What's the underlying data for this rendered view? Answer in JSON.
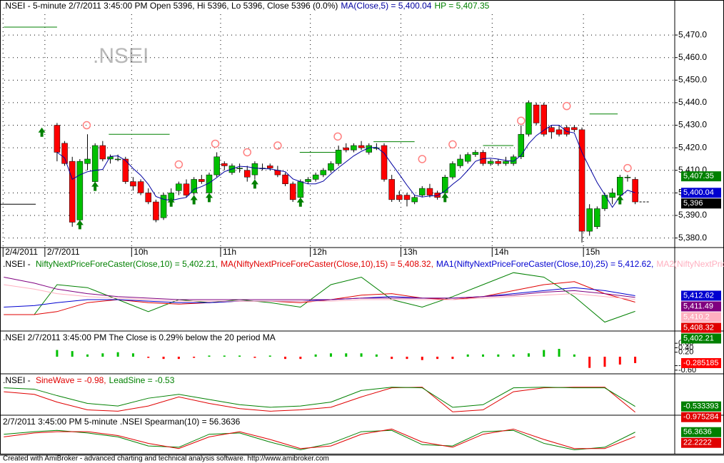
{
  "chart_data": [
    {
      "type": "candlestick",
      "title": ".NSEI - 5-minute 2/7/2011 3:45:00 PM Open 5396, Hi 5396, Lo 5396, Close 5396 (0.0%)",
      "xlim": [
        -7.5,
        81.2
      ],
      "ylim": [
        5376.4,
        5479.2
      ],
      "xticks": [
        {
          "value": -7.1,
          "label": "2/4/2011"
        },
        {
          "value": -1.6,
          "label": "2/7/2011"
        },
        {
          "value": 9.8,
          "label": "10h"
        },
        {
          "value": 21.5,
          "label": "11h"
        },
        {
          "value": 33.3,
          "label": "12h"
        },
        {
          "value": 45.2,
          "label": "13h"
        },
        {
          "value": 57.2,
          "label": "14h"
        },
        {
          "value": 69.2,
          "label": "15h"
        }
      ],
      "yticks": [
        {
          "value": 5380,
          "label": "5,380.0"
        },
        {
          "value": 5390,
          "label": "5,390.0"
        },
        {
          "value": 5400,
          "label": "5,400.0"
        },
        {
          "value": 5410,
          "label": "5,410.0"
        },
        {
          "value": 5420,
          "label": "5,420.0"
        },
        {
          "value": 5430,
          "label": "5,430.0"
        },
        {
          "value": 5440,
          "label": "5,440.0"
        },
        {
          "value": 5450,
          "label": "5,450.0"
        },
        {
          "value": 5460,
          "label": "5,460.0"
        },
        {
          "value": 5470,
          "label": "5,470.0"
        }
      ],
      "grid": true,
      "up_color": "#00c000",
      "down_color": "#ff0000",
      "x": [
        0,
        1,
        2,
        3,
        4,
        5,
        6,
        7,
        8,
        9,
        10,
        11,
        12,
        13,
        14,
        15,
        16,
        17,
        18,
        19,
        20,
        21,
        22,
        23,
        24,
        25,
        26,
        27,
        28,
        29,
        30,
        31,
        32,
        33,
        34,
        35,
        36,
        37,
        38,
        39,
        40,
        41,
        42,
        43,
        44,
        45,
        46,
        47,
        48,
        49,
        50,
        51,
        52,
        53,
        54,
        55,
        56,
        57,
        58,
        59,
        60,
        61,
        62,
        63,
        64,
        65,
        66,
        67,
        68,
        69,
        70,
        71,
        72,
        73,
        74,
        75,
        76
      ],
      "open": [
        5430,
        5422,
        5414,
        5388,
        5413,
        5405,
        5421,
        5415,
        5415,
        5415,
        5405,
        5405,
        5400,
        5396,
        5389,
        5397,
        5401,
        5404,
        5400,
        5406,
        5400,
        5408,
        5413,
        5409,
        5411,
        5410,
        5408,
        5411,
        5412,
        5410,
        5408,
        5404,
        5398,
        5405,
        5406,
        5408,
        5410,
        5413,
        5420,
        5419,
        5421,
        5418,
        5420,
        5421,
        5406,
        5399,
        5399,
        5396,
        5399,
        5402,
        5400,
        5400,
        5407,
        5412,
        5414,
        5417,
        5418,
        5413,
        5414,
        5413,
        5413,
        5416,
        5426,
        5439,
        5439,
        5429,
        5428,
        5429,
        5429,
        5428,
        5383,
        5385,
        5393,
        5398,
        5399,
        5407,
        5406
      ],
      "high": [
        5431,
        5423,
        5416,
        5415,
        5426,
        5422,
        5423,
        5417,
        5417,
        5416,
        5407,
        5406,
        5402,
        5397,
        5400,
        5402,
        5405,
        5406,
        5407,
        5408,
        5409,
        5418,
        5414,
        5413,
        5413,
        5412,
        5414,
        5413,
        5413,
        5412,
        5409,
        5405,
        5406,
        5407,
        5409,
        5411,
        5414,
        5421,
        5422,
        5422,
        5423,
        5422,
        5422,
        5422,
        5408,
        5401,
        5400,
        5399,
        5403,
        5404,
        5401,
        5408,
        5414,
        5417,
        5418,
        5419,
        5419,
        5415,
        5415,
        5416,
        5417,
        5430,
        5441,
        5440,
        5440,
        5430,
        5430,
        5430,
        5430,
        5429,
        5395,
        5394,
        5400,
        5402,
        5408,
        5408,
        5407
      ],
      "low": [
        5414,
        5412,
        5385,
        5386,
        5410,
        5403,
        5414,
        5413,
        5414,
        5404,
        5401,
        5399,
        5395,
        5387,
        5388,
        5396,
        5399,
        5398,
        5399,
        5404,
        5399,
        5407,
        5410,
        5408,
        5409,
        5405,
        5406,
        5410,
        5410,
        5407,
        5403,
        5396,
        5397,
        5404,
        5405,
        5407,
        5409,
        5412,
        5418,
        5418,
        5419,
        5417,
        5419,
        5405,
        5396,
        5396,
        5394,
        5395,
        5398,
        5398,
        5397,
        5399,
        5406,
        5411,
        5413,
        5416,
        5412,
        5412,
        5412,
        5412,
        5412,
        5415,
        5425,
        5430,
        5425,
        5424,
        5425,
        5425,
        5427,
        5378,
        5381,
        5384,
        5392,
        5395,
        5398,
        5405,
        5395
      ],
      "close": [
        5418,
        5413,
        5387,
        5414,
        5415,
        5421,
        5415,
        5416,
        5415,
        5405,
        5403,
        5400,
        5396,
        5388,
        5399,
        5400,
        5404,
        5399,
        5406,
        5405,
        5408,
        5416,
        5412,
        5412,
        5411,
        5407,
        5413,
        5411,
        5411,
        5408,
        5404,
        5397,
        5405,
        5406,
        5408,
        5410,
        5413,
        5419,
        5419,
        5421,
        5420,
        5421,
        5420,
        5406,
        5397,
        5397,
        5397,
        5398,
        5402,
        5399,
        5398,
        5407,
        5413,
        5415,
        5417,
        5418,
        5413,
        5414,
        5413,
        5414,
        5416,
        5426,
        5440,
        5431,
        5426,
        5427,
        5426,
        5426,
        5428,
        5383,
        5393,
        5393,
        5399,
        5400,
        5407,
        5407,
        5396
      ],
      "series": [
        {
          "legend": "MA(Close,5) = 5,400.04",
          "color": "#0000a0",
          "value_label": "5,400.04",
          "values": [
            5418,
            5415.5,
            5406,
            5408,
            5409.4,
            5410,
            5410.4,
            5416.2,
            5416.4,
            5414.4,
            5410.8,
            5407.8,
            5403.8,
            5398.4,
            5397.2,
            5396.6,
            5397.4,
            5398,
            5401.6,
            5402.8,
            5404.4,
            5406.8,
            5409.4,
            5410.6,
            5411.8,
            5411.6,
            5411,
            5410.8,
            5410.6,
            5410,
            5409.4,
            5406.2,
            5405,
            5404,
            5404,
            5405.2,
            5408.4,
            5411.2,
            5413.8,
            5416.4,
            5418.4,
            5420,
            5420.2,
            5417.6,
            5412.8,
            5408.2,
            5403.4,
            5399,
            5398.2,
            5398.6,
            5398.8,
            5400.8,
            5403.8,
            5406.4,
            5410,
            5414,
            5415.2,
            5415.4,
            5415,
            5414.4,
            5414,
            5416.6,
            5421.8,
            5425.4,
            5427.8,
            5430,
            5430,
            5427.2,
            5426.6,
            5418,
            5411.2,
            5404.6,
            5399.2,
            5393.6,
            5398.4,
            5401.2,
            5400.04
          ]
        }
      ],
      "hp": {
        "legend": "HP = 5,407.35",
        "value": 5407.35,
        "value_label": "5,407.35",
        "color": "#008000"
      },
      "close_badge": {
        "value": 5396,
        "label": "5,396"
      },
      "prev_session": {
        "x": [
          -7.5,
          -2.8
        ],
        "values": [
          5395,
          5395
        ]
      },
      "hp_levels": [
        {
          "x": [
            -7,
            0
          ],
          "y": 5473.5
        },
        {
          "x": [
            6.8,
            14.8
          ],
          "y": 5426
        },
        {
          "x": [
            31.9,
            36.6
          ],
          "y": 5418
        },
        {
          "x": [
            41.6,
            47
          ],
          "y": 5422.7
        },
        {
          "x": [
            56,
            60
          ],
          "y": 5421
        },
        {
          "x": [
            70,
            73.7
          ],
          "y": 5435
        }
      ],
      "buy_arrows": {
        "x": [
          -2,
          3,
          5,
          15,
          18,
          20,
          26,
          32,
          51,
          74
        ],
        "y": [
          5429,
          5388,
          5405,
          5398,
          5399,
          5400,
          5406,
          5398,
          5400,
          5399
        ],
        "color": "#008000"
      },
      "sell_circles": {
        "x": [
          3.9,
          16,
          20.8,
          25,
          29,
          36.9,
          48,
          52,
          61,
          67,
          75
        ],
        "y": [
          5430,
          5412.6,
          5421.8,
          5418,
          5421,
          5425,
          5415,
          5421.5,
          5432,
          5438.5,
          5411
        ],
        "color": "#ff8080"
      }
    },
    {
      "type": "line",
      "title": ".NSEI - ",
      "xlim": [
        -7.5,
        81.2
      ],
      "ylim": [
        5390,
        5430
      ],
      "x": [
        -7,
        -3,
        0,
        4,
        8,
        12,
        16,
        20,
        24,
        28,
        32,
        36,
        40,
        44,
        48,
        52,
        56,
        60,
        64,
        68,
        72,
        76
      ],
      "series": [
        {
          "legend": "NiftyNextPriceForeCaster(Close,10) = 5,402.21,",
          "color": "#008000",
          "value_label": "5,402.21",
          "values": [
            5400,
            5400,
            5420,
            5418,
            5410,
            5402,
            5410,
            5408,
            5410,
            5408,
            5405,
            5420,
            5425,
            5410,
            5405,
            5412,
            5420,
            5428,
            5425,
            5412,
            5395,
            5402.21
          ]
        },
        {
          "legend": "MA(NiftyNextPriceForeCaster(Close,10),15) = 5,408.32,",
          "color": "#e00000",
          "value_label": "5,408.32",
          "values": [
            5400,
            5400,
            5402,
            5408,
            5410,
            5408,
            5407,
            5408,
            5409,
            5409,
            5408,
            5410,
            5413,
            5414,
            5411,
            5410,
            5412,
            5416,
            5420,
            5422,
            5414,
            5408.32
          ]
        },
        {
          "legend": "MA1(NiftyNextPriceForeCaster(Close,10),25) = 5,412.62,",
          "color": "#0000d0",
          "value_label": "5,412.62",
          "values": [
            5405,
            5406,
            5408,
            5410,
            5410,
            5409,
            5408,
            5408,
            5409,
            5409,
            5409,
            5410,
            5411,
            5412,
            5411,
            5411,
            5412,
            5414,
            5416,
            5418,
            5416,
            5412.62
          ]
        },
        {
          "legend": "MA2(NiftyNextPric",
          "color": "#ffb0c0",
          "value_label": "5,410.2",
          "values": [
            5420,
            5417,
            5414,
            5412,
            5411,
            5410,
            5409,
            5409,
            5409,
            5409,
            5409,
            5409,
            5410,
            5410,
            5410,
            5410,
            5411,
            5412,
            5413,
            5414,
            5412,
            5410.2
          ]
        },
        {
          "color": "#800080",
          "value_label": "5,411.49",
          "values": [
            5425,
            5421,
            5417,
            5414,
            5412,
            5411,
            5410,
            5410,
            5410,
            5410,
            5410,
            5410,
            5411,
            5411,
            5411,
            5411,
            5412,
            5413,
            5415,
            5416,
            5414,
            5411.49
          ]
        }
      ]
    },
    {
      "type": "bar",
      "title": ".NSEI 2/7/2011 3:45:00 PM The Close is 0.29% below the 20 period MA",
      "xlim": [
        -7.5,
        81.2
      ],
      "ylim": [
        -0.7,
        0.7
      ],
      "yticks": [
        {
          "value": 0.6,
          "label": "0.60"
        },
        {
          "value": 0.4,
          "label": "0.40"
        },
        {
          "value": 0.2,
          "label": "0.20"
        },
        {
          "value": -0.4,
          "label": "-0.40"
        },
        {
          "value": -0.6,
          "label": "-0.60"
        }
      ],
      "up_color": "#00c000",
      "down_color": "#ff0000",
      "badge_color": "#ff0000",
      "value_label": "-0.285185",
      "x": [
        0,
        2,
        4,
        6,
        8,
        10,
        12,
        14,
        16,
        18,
        20,
        22,
        24,
        26,
        28,
        30,
        32,
        34,
        36,
        38,
        40,
        42,
        44,
        46,
        48,
        50,
        52,
        54,
        56,
        58,
        60,
        62,
        64,
        66,
        68,
        70,
        72,
        74,
        76
      ],
      "values": [
        0.3,
        0.25,
        0.1,
        0.15,
        0.2,
        0.15,
        -0.05,
        -0.1,
        -0.1,
        -0.05,
        0.05,
        0.05,
        0.05,
        -0.05,
        0.05,
        -0.1,
        -0.1,
        0.1,
        0.15,
        0.15,
        0.15,
        0.1,
        -0.1,
        -0.1,
        -0.15,
        -0.1,
        -0.1,
        0.1,
        0.1,
        0.1,
        0.1,
        0.15,
        0.3,
        0.35,
        0.1,
        -0.5,
        -0.45,
        -0.35,
        -0.285185
      ]
    },
    {
      "type": "line",
      "title": ".NSEI - ",
      "xlim": [
        -7.5,
        81.2
      ],
      "ylim": [
        -1.1,
        1.1
      ],
      "x": [
        -7,
        -3,
        0,
        4,
        8,
        12,
        16,
        20,
        24,
        28,
        32,
        36,
        40,
        44,
        48,
        52,
        56,
        60,
        64,
        68,
        72,
        76
      ],
      "series": [
        {
          "legend": "SineWave  = -0.98,",
          "color": "#e00000",
          "value_label": "-0.975284",
          "values": [
            0.6,
            0.4,
            -0.2,
            -0.8,
            -0.9,
            -0.5,
            0.2,
            -0.3,
            -0.7,
            -0.9,
            -0.8,
            -0.6,
            0.2,
            0.9,
            0.95,
            -0.95,
            -0.8,
            0.6,
            0.9,
            0.95,
            0.95,
            -0.975284
          ]
        },
        {
          "legend": "LeadSine  = -0.53",
          "color": "#008000",
          "value_label": "-0.533393",
          "values": [
            0.9,
            0.8,
            0.3,
            -0.3,
            -0.5,
            0.1,
            0.4,
            0,
            -0.4,
            -0.6,
            -0.5,
            -0.2,
            0.7,
            0.95,
            0.9,
            -0.6,
            -0.4,
            0.9,
            0.95,
            0.9,
            0.9,
            -0.533393
          ]
        }
      ]
    },
    {
      "type": "line",
      "title": "2/7/2011 3:45:00 PM 5-minute .NSEI Spearman(10) = 56.3636",
      "xlim": [
        -7.5,
        81.2
      ],
      "ylim": [
        -110,
        110
      ],
      "x": [
        -7,
        -3,
        0,
        4,
        8,
        12,
        16,
        20,
        24,
        28,
        32,
        36,
        40,
        44,
        48,
        52,
        56,
        60,
        64,
        68,
        72,
        76
      ],
      "series": [
        {
          "color": "#008000",
          "value_label": "56.3636",
          "values": [
            40,
            60,
            70,
            50,
            20,
            -50,
            -60,
            40,
            50,
            -20,
            -80,
            -30,
            60,
            70,
            -40,
            -50,
            60,
            70,
            -30,
            -80,
            -60,
            56.3636
          ]
        },
        {
          "color": "#e00000",
          "value_label": "22.2222",
          "values": [
            20,
            50,
            60,
            60,
            30,
            -30,
            -70,
            20,
            60,
            0,
            -70,
            -50,
            40,
            80,
            -20,
            -60,
            40,
            80,
            0,
            -70,
            -70,
            22.2222
          ]
        }
      ]
    }
  ],
  "watermark": ".NSEI",
  "footer": "Created with AmiBroker - advanced charting and technical analysis software. http://www.amibroker.com"
}
